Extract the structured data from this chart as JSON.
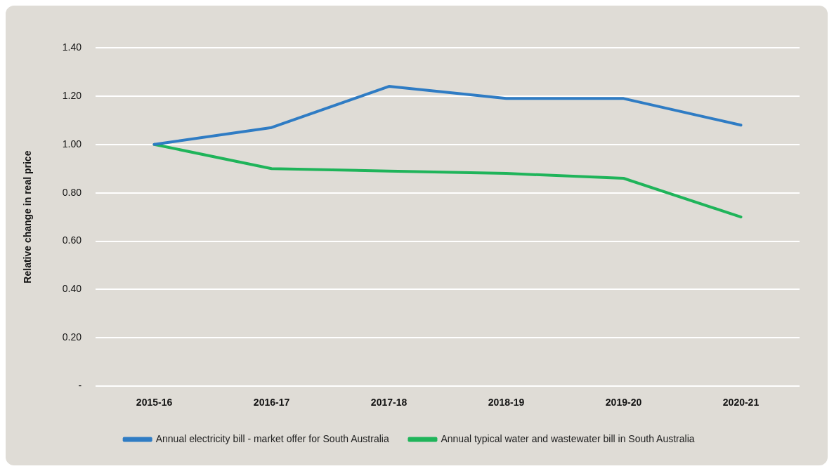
{
  "chart_data": {
    "type": "line",
    "ylabel": "Relative change in real price",
    "categories": [
      "2015-16",
      "2016-17",
      "2017-18",
      "2018-19",
      "2019-20",
      "2020-21"
    ],
    "series": [
      {
        "name": "Annual electricity bill - market offer for South Australia",
        "color": "#2f7cc4",
        "values": [
          1.0,
          1.07,
          1.24,
          1.19,
          1.19,
          1.08
        ]
      },
      {
        "name": "Annual typical water and wastewater bill in South Australia",
        "color": "#1fb45a",
        "values": [
          1.0,
          0.9,
          0.89,
          0.88,
          0.86,
          0.7
        ]
      }
    ],
    "ylim": [
      0,
      1.4
    ],
    "yticks": [
      {
        "value": 0,
        "label": "-"
      },
      {
        "value": 0.2,
        "label": "0.20"
      },
      {
        "value": 0.4,
        "label": "0.40"
      },
      {
        "value": 0.6,
        "label": "0.60"
      },
      {
        "value": 0.8,
        "label": "0.80"
      },
      {
        "value": 1.0,
        "label": "1.00"
      },
      {
        "value": 1.2,
        "label": "1.20"
      },
      {
        "value": 1.4,
        "label": "1.40"
      }
    ],
    "grid": "y",
    "legend": "bottom",
    "marker": "none"
  }
}
